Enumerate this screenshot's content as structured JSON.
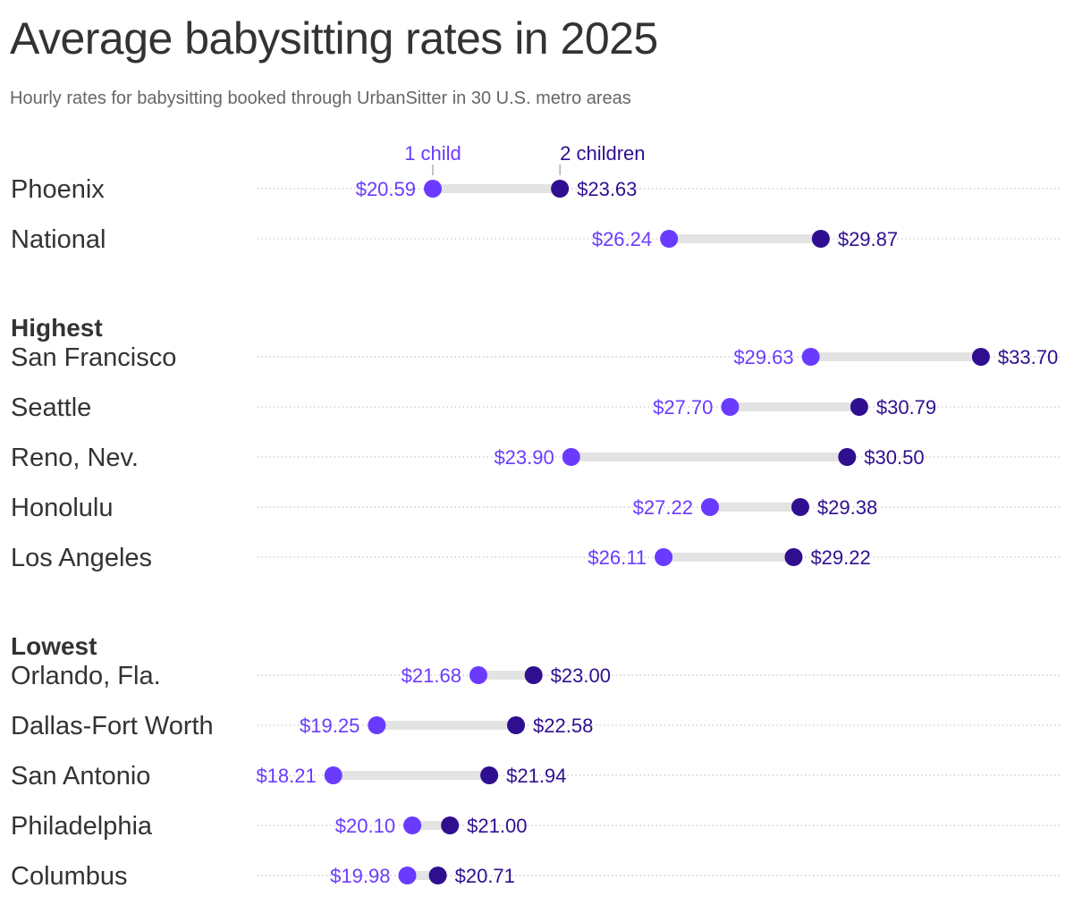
{
  "chart_data": {
    "type": "dumbbell",
    "title": "Average babysitting rates in 2025",
    "subtitle": "Hourly rates for babysitting booked through UrbanSitter in 30 U.S. metro areas",
    "legend": {
      "one_child": "1 child",
      "two_children": "2 children"
    },
    "colors": {
      "one_child": "#6a3bff",
      "two_children": "#2f0f90",
      "bar": "#e3e3e3"
    },
    "groups": [
      {
        "label": "",
        "rows": [
          {
            "city": "Phoenix",
            "one_child": 20.59,
            "two_children": 23.63,
            "one_label": "$20.59",
            "two_label": "$23.63"
          },
          {
            "city": "National",
            "one_child": 26.24,
            "two_children": 29.87,
            "one_label": "$26.24",
            "two_label": "$29.87"
          }
        ]
      },
      {
        "label": "Highest",
        "rows": [
          {
            "city": "San Francisco",
            "one_child": 29.63,
            "two_children": 33.7,
            "one_label": "$29.63",
            "two_label": "$33.70"
          },
          {
            "city": "Seattle",
            "one_child": 27.7,
            "two_children": 30.79,
            "one_label": "$27.70",
            "two_label": "$30.79"
          },
          {
            "city": "Reno, Nev.",
            "one_child": 23.9,
            "two_children": 30.5,
            "one_label": "$23.90",
            "two_label": "$30.50"
          },
          {
            "city": "Honolulu",
            "one_child": 27.22,
            "two_children": 29.38,
            "one_label": "$27.22",
            "two_label": "$29.38"
          },
          {
            "city": "Los Angeles",
            "one_child": 26.11,
            "two_children": 29.22,
            "one_label": "$26.11",
            "two_label": "$29.22"
          }
        ]
      },
      {
        "label": "Lowest",
        "rows": [
          {
            "city": "Orlando, Fla.",
            "one_child": 21.68,
            "two_children": 23.0,
            "one_label": "$21.68",
            "two_label": "$23.00"
          },
          {
            "city": "Dallas-Fort Worth",
            "one_child": 19.25,
            "two_children": 22.58,
            "one_label": "$19.25",
            "two_label": "$22.58"
          },
          {
            "city": "San Antonio",
            "one_child": 18.21,
            "two_children": 21.94,
            "one_label": "$18.21",
            "two_label": "$21.94"
          },
          {
            "city": "Philadelphia",
            "one_child": 20.1,
            "two_children": 21.0,
            "one_label": "$20.10",
            "two_label": "$21.00"
          },
          {
            "city": "Columbus",
            "one_child": 19.98,
            "two_children": 20.71,
            "one_label": "$19.98",
            "two_label": "$20.71"
          }
        ]
      }
    ]
  }
}
